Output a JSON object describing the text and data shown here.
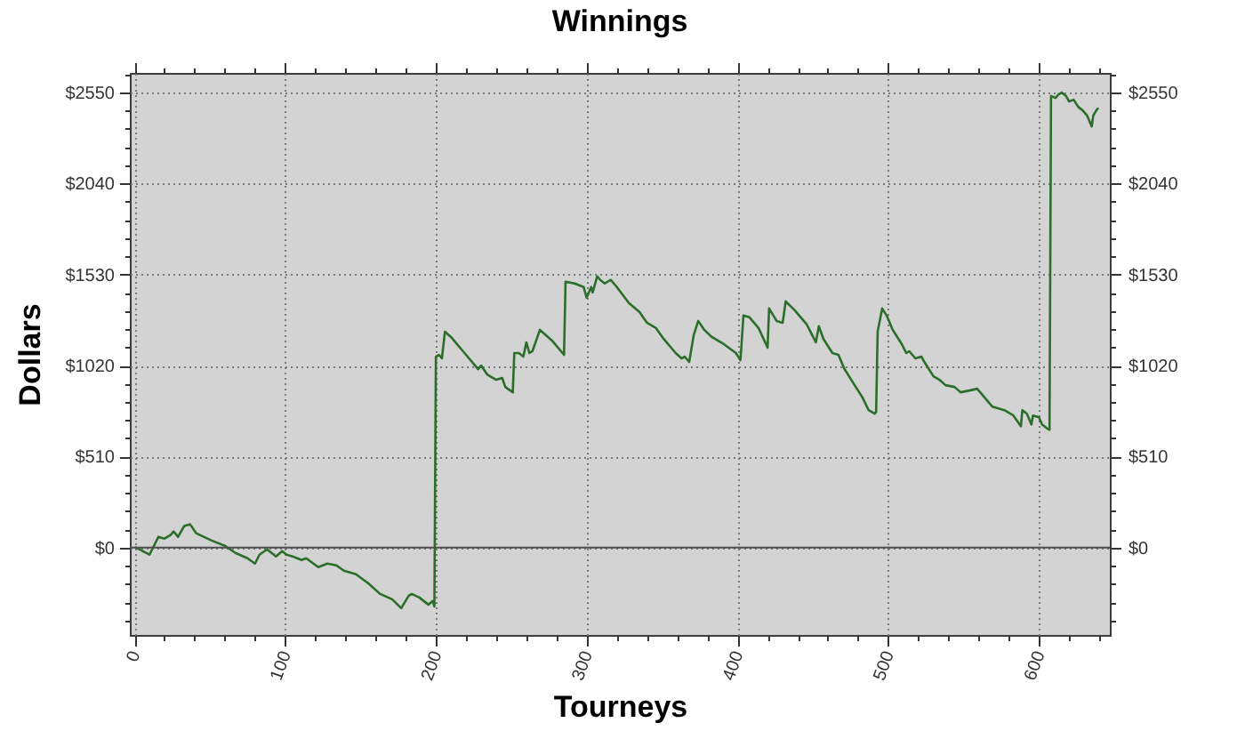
{
  "chart_data": {
    "type": "line",
    "title": "Winnings",
    "xlabel": "Tourneys",
    "ylabel": "Dollars",
    "x": [
      1,
      10,
      16,
      20,
      24,
      26,
      29,
      33,
      37,
      41,
      51,
      60,
      67,
      75,
      80,
      83,
      88,
      94,
      98,
      101,
      105,
      111,
      114,
      122,
      128,
      134,
      139,
      147,
      155,
      163,
      171,
      177,
      182,
      184,
      189,
      192,
      195,
      198,
      199,
      200,
      202,
      204,
      206,
      210,
      218,
      228,
      230,
      234,
      240,
      244,
      246,
      251,
      252,
      255,
      258,
      260,
      262,
      264,
      269,
      277,
      285,
      286,
      292,
      298,
      300,
      303,
      304,
      307,
      309,
      312,
      316,
      320,
      328,
      335,
      340,
      346,
      351,
      359,
      363,
      365,
      368,
      371,
      374,
      378,
      383,
      391,
      399,
      402,
      404,
      408,
      414,
      420,
      421,
      426,
      430,
      432,
      438,
      446,
      452,
      454,
      457,
      463,
      467,
      471,
      477,
      483,
      487,
      491,
      492,
      493,
      496,
      499,
      503,
      509,
      512,
      514,
      518,
      522,
      524,
      530,
      534,
      538,
      544,
      548,
      554,
      559,
      563,
      569,
      577,
      583,
      588,
      589,
      592,
      595,
      596,
      600,
      602,
      605,
      607,
      608,
      611,
      613,
      615,
      618,
      620,
      623,
      626,
      629,
      632,
      635,
      636,
      638,
      639
    ],
    "series": [
      {
        "color": "#2a6e2a",
        "values": [
          0,
          -40,
          60,
          50,
          70,
          90,
          60,
          120,
          130,
          80,
          40,
          10,
          -30,
          -60,
          -90,
          -40,
          -10,
          -50,
          -20,
          -40,
          -50,
          -70,
          -60,
          -110,
          -90,
          -100,
          -130,
          -150,
          -200,
          -260,
          -290,
          -340,
          -270,
          -260,
          -280,
          -300,
          -320,
          -300,
          -330,
          1070,
          1080,
          1060,
          1210,
          1180,
          1100,
          1000,
          1020,
          970,
          940,
          950,
          900,
          870,
          1090,
          1090,
          1070,
          1150,
          1090,
          1100,
          1220,
          1160,
          1080,
          1490,
          1480,
          1460,
          1400,
          1460,
          1430,
          1520,
          1500,
          1480,
          1500,
          1460,
          1370,
          1320,
          1260,
          1230,
          1170,
          1090,
          1060,
          1070,
          1040,
          1190,
          1270,
          1220,
          1180,
          1140,
          1090,
          1050,
          1300,
          1290,
          1230,
          1120,
          1340,
          1270,
          1260,
          1380,
          1330,
          1250,
          1150,
          1240,
          1170,
          1090,
          1080,
          1000,
          920,
          840,
          770,
          750,
          760,
          1210,
          1340,
          1300,
          1220,
          1140,
          1090,
          1100,
          1060,
          1070,
          1040,
          960,
          940,
          910,
          900,
          870,
          880,
          890,
          850,
          790,
          770,
          740,
          680,
          770,
          750,
          690,
          740,
          730,
          690,
          670,
          660,
          2530,
          2520,
          2540,
          2550,
          2530,
          2500,
          2510,
          2470,
          2450,
          2420,
          2360,
          2420,
          2450,
          2460
        ]
      }
    ],
    "xlim": [
      -3,
      647
    ],
    "xticks": [
      0,
      {
        "value": 20,
        "label": null
      },
      {
        "value": 40,
        "label": null
      },
      {
        "value": 60,
        "label": null
      },
      {
        "value": 80,
        "label": null
      },
      100,
      {
        "value": 120,
        "label": null
      },
      {
        "value": 140,
        "label": null
      },
      {
        "value": 160,
        "label": null
      },
      {
        "value": 180,
        "label": null
      },
      200,
      {
        "value": 220,
        "label": null
      },
      {
        "value": 240,
        "label": null
      },
      {
        "value": 260,
        "label": null
      },
      {
        "value": 280,
        "label": null
      },
      300,
      {
        "value": 320,
        "label": null
      },
      {
        "value": 340,
        "label": null
      },
      {
        "value": 360,
        "label": null
      },
      {
        "value": 380,
        "label": null
      },
      400,
      {
        "value": 420,
        "label": null
      },
      {
        "value": 440,
        "label": null
      },
      {
        "value": 460,
        "label": null
      },
      {
        "value": 480,
        "label": null
      },
      500,
      {
        "value": 520,
        "label": null
      },
      {
        "value": 540,
        "label": null
      },
      {
        "value": 560,
        "label": null
      },
      {
        "value": 580,
        "label": null
      },
      600,
      {
        "value": 620,
        "label": null
      },
      {
        "value": 640,
        "label": null
      }
    ],
    "ylim": [
      -490,
      2660
    ],
    "yticks": [
      {
        "value": -408,
        "label": null
      },
      {
        "value": -306,
        "label": null
      },
      {
        "value": -204,
        "label": null
      },
      {
        "value": -102,
        "label": null
      },
      {
        "value": 0,
        "label": "$0"
      },
      {
        "value": 102,
        "label": null
      },
      {
        "value": 204,
        "label": null
      },
      {
        "value": 306,
        "label": null
      },
      {
        "value": 408,
        "label": null
      },
      {
        "value": 510,
        "label": "$510"
      },
      {
        "value": 612,
        "label": null
      },
      {
        "value": 714,
        "label": null
      },
      {
        "value": 816,
        "label": null
      },
      {
        "value": 918,
        "label": null
      },
      {
        "value": 1020,
        "label": "$1020"
      },
      {
        "value": 1122,
        "label": null
      },
      {
        "value": 1224,
        "label": null
      },
      {
        "value": 1326,
        "label": null
      },
      {
        "value": 1428,
        "label": null
      },
      {
        "value": 1530,
        "label": "$1530"
      },
      {
        "value": 1632,
        "label": null
      },
      {
        "value": 1734,
        "label": null
      },
      {
        "value": 1836,
        "label": null
      },
      {
        "value": 1938,
        "label": null
      },
      {
        "value": 2040,
        "label": "$2040"
      },
      {
        "value": 2142,
        "label": null
      },
      {
        "value": 2244,
        "label": null
      },
      {
        "value": 2346,
        "label": null
      },
      {
        "value": 2448,
        "label": null
      },
      {
        "value": 2550,
        "label": "$2550"
      },
      {
        "value": 2652,
        "label": null
      }
    ],
    "y2lim": [
      -490,
      2660
    ],
    "y2ticks": [
      {
        "value": -408,
        "label": null
      },
      {
        "value": -306,
        "label": null
      },
      {
        "value": -204,
        "label": null
      },
      {
        "value": -102,
        "label": null
      },
      {
        "value": 0,
        "label": "$0"
      },
      {
        "value": 102,
        "label": null
      },
      {
        "value": 204,
        "label": null
      },
      {
        "value": 306,
        "label": null
      },
      {
        "value": 408,
        "label": null
      },
      {
        "value": 510,
        "label": "$510"
      },
      {
        "value": 612,
        "label": null
      },
      {
        "value": 714,
        "label": null
      },
      {
        "value": 816,
        "label": null
      },
      {
        "value": 918,
        "label": null
      },
      {
        "value": 1020,
        "label": "$1020"
      },
      {
        "value": 1122,
        "label": null
      },
      {
        "value": 1224,
        "label": null
      },
      {
        "value": 1326,
        "label": null
      },
      {
        "value": 1428,
        "label": null
      },
      {
        "value": 1530,
        "label": "$1530"
      },
      {
        "value": 1632,
        "label": null
      },
      {
        "value": 1734,
        "label": null
      },
      {
        "value": 1836,
        "label": null
      },
      {
        "value": 1938,
        "label": null
      },
      {
        "value": 2040,
        "label": "$2040"
      },
      {
        "value": 2142,
        "label": null
      },
      {
        "value": 2244,
        "label": null
      },
      {
        "value": 2346,
        "label": null
      },
      {
        "value": 2448,
        "label": null
      },
      {
        "value": 2550,
        "label": "$2550"
      },
      {
        "value": 2652,
        "label": null
      }
    ],
    "ref_lines": [
      {
        "axis": "y",
        "value": 0,
        "color": "#4d4d4d"
      }
    ],
    "grid": true
  }
}
